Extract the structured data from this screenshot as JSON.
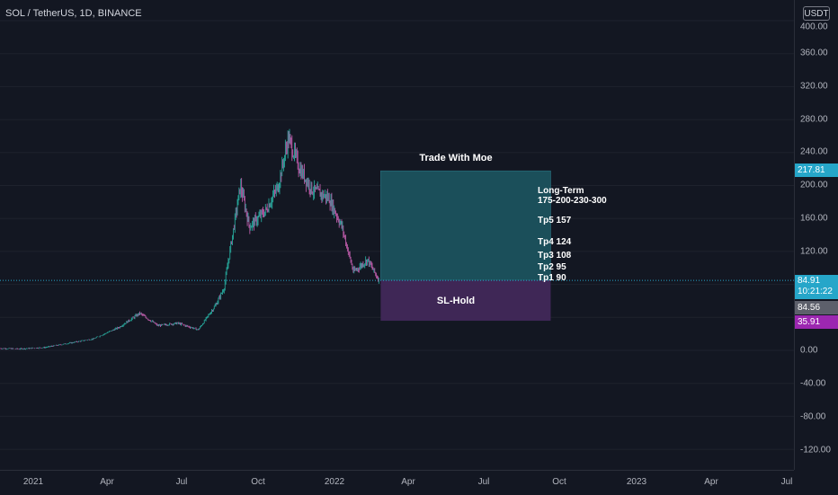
{
  "header": {
    "symbol_title": "SOL / TetherUS, 1D, BINANCE",
    "currency": "USDT"
  },
  "price_axis": {
    "labels": [
      "400.00",
      "360.00",
      "320.00",
      "280.00",
      "240.00",
      "200.00",
      "160.00",
      "120.00",
      "0.00",
      "-40.00",
      "-80.00",
      "-120.00"
    ]
  },
  "time_axis": {
    "labels": [
      "2021",
      "Apr",
      "Jul",
      "Oct",
      "2022",
      "Apr",
      "Jul",
      "Oct",
      "2023",
      "Apr",
      "Jul"
    ]
  },
  "badges": {
    "target_price": "217.81",
    "last_price": "84.91",
    "countdown": "10:21:22",
    "prev_price": "84.56",
    "indicator_value": "35.91"
  },
  "colors": {
    "profit_zone": "#1b4f5a",
    "loss_zone": "#3f2756",
    "candle_up": "#26a69a",
    "candle_down": "#b85aa6",
    "last_price_line": "#26a6c9",
    "badge_cyan": "#26a6c9",
    "badge_gray": "#5d606b",
    "badge_purple": "#9c27b0"
  },
  "trade_box": {
    "title": "Trade With Moe",
    "stop_label": "SL-Hold",
    "long_term_label": "Long-Term",
    "long_term_targets": "175-200-230-300",
    "targets": [
      "Tp5 157",
      "Tp4 124",
      "Tp3 108",
      "Tp2 95",
      "Tp1 90"
    ]
  },
  "chart_data": {
    "type": "candlestick",
    "symbol": "SOL / TetherUS",
    "interval": "1D",
    "exchange": "BINANCE",
    "ylim": [
      -140,
      420
    ],
    "close_series": [
      {
        "date": "2020-11-15",
        "close": 2.5
      },
      {
        "date": "2020-12-15",
        "close": 1.8
      },
      {
        "date": "2021-01-15",
        "close": 3.5
      },
      {
        "date": "2021-02-15",
        "close": 9
      },
      {
        "date": "2021-03-15",
        "close": 14
      },
      {
        "date": "2021-04-15",
        "close": 28
      },
      {
        "date": "2021-05-10",
        "close": 45
      },
      {
        "date": "2021-06-01",
        "close": 30
      },
      {
        "date": "2021-06-25",
        "close": 33
      },
      {
        "date": "2021-07-20",
        "close": 25
      },
      {
        "date": "2021-08-10",
        "close": 55
      },
      {
        "date": "2021-08-20",
        "close": 75
      },
      {
        "date": "2021-09-09",
        "close": 200
      },
      {
        "date": "2021-09-20",
        "close": 150
      },
      {
        "date": "2021-10-10",
        "close": 170
      },
      {
        "date": "2021-10-25",
        "close": 200
      },
      {
        "date": "2021-11-06",
        "close": 258
      },
      {
        "date": "2021-11-20",
        "close": 220
      },
      {
        "date": "2021-12-05",
        "close": 195
      },
      {
        "date": "2021-12-25",
        "close": 185
      },
      {
        "date": "2022-01-10",
        "close": 150
      },
      {
        "date": "2022-01-24",
        "close": 95
      },
      {
        "date": "2022-02-10",
        "close": 110
      },
      {
        "date": "2022-02-24",
        "close": 84.91
      }
    ],
    "last_price": 84.91,
    "position_box": {
      "entry": 84.91,
      "target": 217.81,
      "stop": 35.91,
      "start_date": "2022-02-26",
      "end_date": "2022-09-20"
    }
  }
}
